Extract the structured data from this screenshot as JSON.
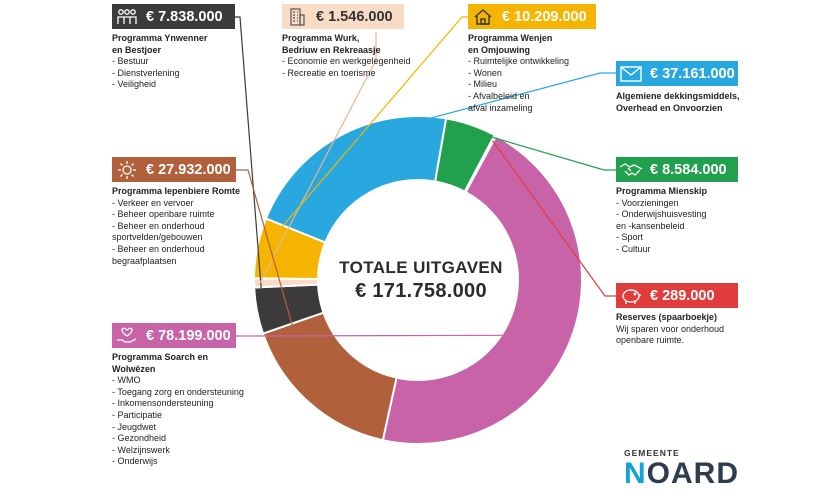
{
  "center": {
    "title": "TOTALE UITGAVEN",
    "total": "€ 171.758.000"
  },
  "chart_data": {
    "type": "pie",
    "title": "TOTALE UITGAVEN",
    "total": 171758000,
    "unit": "€",
    "slices": [
      {
        "label": "Algemiene dekkingsmiddels, Overhead en Onvoorzien",
        "value": 37161000,
        "color": "#29a8e0"
      },
      {
        "label": "Programma Mienskip",
        "value": 8584000,
        "color": "#21a04e"
      },
      {
        "label": "Reserves (spaarboekje)",
        "value": 289000,
        "color": "#e03c3c"
      },
      {
        "label": "Programma Soarch en Wolwêzen",
        "value": 78199000,
        "color": "#c963a8"
      },
      {
        "label": "Programma Iepenbiere Romte",
        "value": 27932000,
        "color": "#b0613c"
      },
      {
        "label": "Programma Ynwenner en Bestjoer",
        "value": 7838000,
        "color": "#3c3a3a"
      },
      {
        "label": "Programma Wurk, Bedriuw en Rekreaasje",
        "value": 1546000,
        "color": "#f9dcc6"
      },
      {
        "label": "Programma Wenjen en Omjouwing",
        "value": 10209000,
        "color": "#f5b400"
      }
    ]
  },
  "blocks": {
    "ynwenner": {
      "amount": "€ 7.838.000",
      "color": "#3c3a3a",
      "icon": "people-icon",
      "heading": "Programma Ynwenner\nen Bestjoer",
      "items": [
        "Bestuur",
        "Dienstverlening",
        "Veiligheid"
      ]
    },
    "wurk": {
      "amount": "€ 1.546.000",
      "color": "#f9dcc6",
      "icon": "building-icon",
      "heading": "Programma Wurk,\nBedriuw en Rekreaasje",
      "items": [
        "Economie en werkgelegenheid",
        "Recreatie en toerisme"
      ]
    },
    "wenjen": {
      "amount": "€ 10.209.000",
      "color": "#f5b400",
      "icon": "house-icon",
      "heading": "Programma Wenjen\nen Omjouwing",
      "items": [
        "Ruimtelijke ontwikkeling",
        "Wonen",
        "Milieu",
        "Afvalbeleid en\nafval inzameling"
      ]
    },
    "algemien": {
      "amount": "€ 37.161.000",
      "color": "#29a8e0",
      "icon": "envelope-icon",
      "heading": "Algemiene dekkingsmiddels,\nOverhead en Onvoorzien",
      "items": []
    },
    "mienskip": {
      "amount": "€ 8.584.000",
      "color": "#21a04e",
      "icon": "handshake-icon",
      "heading": "Programma Mienskip",
      "items": [
        "Voorzieningen",
        "Onderwijshuisvesting\nen -kansenbeleid",
        "Sport",
        "Cultuur"
      ]
    },
    "reserves": {
      "amount": "€ 289.000",
      "color": "#e03c3c",
      "icon": "piggy-bank-icon",
      "heading": "Reserves (spaarboekje)",
      "desc": "Wij sparen voor onderhoud\nopenbare ruimte."
    },
    "iepenbiere": {
      "amount": "€ 27.932.000",
      "color": "#b0613c",
      "icon": "sun-icon",
      "heading": "Programma Iepenbiere Romte",
      "items": [
        "Verkeer en vervoer",
        "Beheer openbare ruimte",
        "Beheer en onderhoud\nsportvelden/gebouwen",
        "Beheer en onderhoud\nbegraafplaatsen"
      ]
    },
    "soarch": {
      "amount": "€ 78.199.000",
      "color": "#c963a8",
      "icon": "hand-heart-icon",
      "heading": "Programma Soarch en\nWolwêzen",
      "items": [
        "WMO",
        "Toegang zorg en ondersteuning",
        "Inkomensondersteuning",
        "Participatie",
        "Jeugdwet",
        "Gezondheid",
        "Welzijnswerk",
        "Onderwijs"
      ]
    }
  },
  "logo": {
    "top": "GEMEENTE",
    "first": "N",
    "rest": "OARD"
  }
}
